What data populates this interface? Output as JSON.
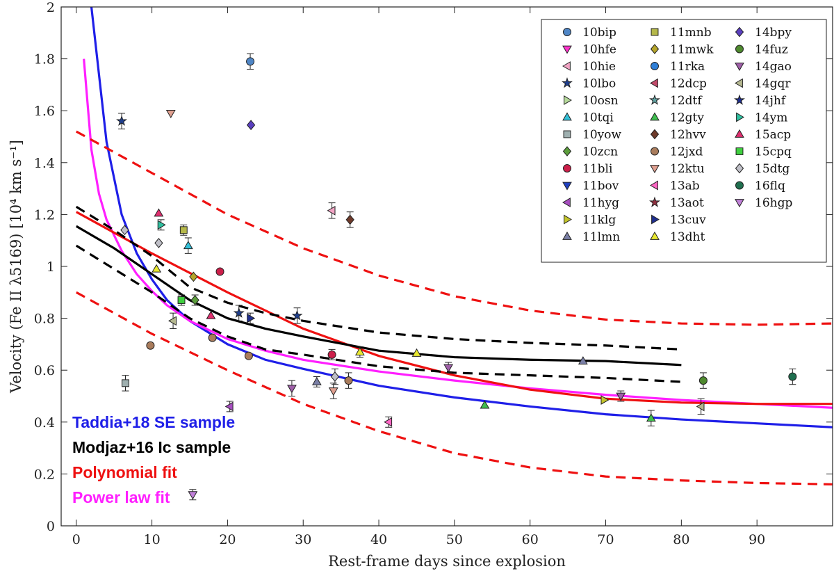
{
  "chart_data": {
    "type": "scatter",
    "title": "",
    "xlabel": "Rest-frame days since explosion",
    "ylabel": "Velocity (Fe II λ5169) [10⁴ km s⁻¹]",
    "xlim": [
      -2,
      100
    ],
    "ylim": [
      0,
      2
    ],
    "xticks": [
      "0",
      "10",
      "20",
      "30",
      "40",
      "50",
      "60",
      "70",
      "80",
      "90"
    ],
    "yticks": [
      "0",
      "0.2",
      "0.4",
      "0.6",
      "0.8",
      "1",
      "1.2",
      "1.4",
      "1.6",
      "1.8",
      "2"
    ],
    "grid": false,
    "legend_position": "top-right",
    "series": [
      {
        "name": "10bip",
        "marker": "circle",
        "color": "#4f86c6",
        "x": [
          23
        ],
        "y": [
          1.79
        ],
        "err": [
          0.03
        ]
      },
      {
        "name": "10hfe",
        "marker": "triangle-down",
        "color": "#ff33cc",
        "x": [],
        "y": []
      },
      {
        "name": "10hie",
        "marker": "triangle-left",
        "color": "#f2a4c4",
        "x": [
          33.8
        ],
        "y": [
          1.215
        ],
        "err": [
          0.03
        ]
      },
      {
        "name": "10lbo",
        "marker": "star",
        "color": "#1f3f8f",
        "x": [
          6,
          21.5,
          29.2
        ],
        "y": [
          1.56,
          0.82,
          0.81
        ],
        "err": [
          0.03,
          0.03,
          0.03
        ]
      },
      {
        "name": "10osn",
        "marker": "triangle-right",
        "color": "#b5d99a",
        "x": [],
        "y": []
      },
      {
        "name": "10tqi",
        "marker": "triangle-up",
        "color": "#33c0d8",
        "x": [
          14.8
        ],
        "y": [
          1.08
        ],
        "err": [
          0.03
        ]
      },
      {
        "name": "10yow",
        "marker": "square",
        "color": "#9fb0b0",
        "x": [
          6.5
        ],
        "y": [
          0.55
        ],
        "err": [
          0.03
        ]
      },
      {
        "name": "10zcn",
        "marker": "diamond",
        "color": "#5c9e3c",
        "x": [
          15.7
        ],
        "y": [
          0.87
        ],
        "err": [
          0.02
        ]
      },
      {
        "name": "11bli",
        "marker": "circle",
        "color": "#cc1f4a",
        "x": [
          19,
          33.8
        ],
        "y": [
          0.98,
          0.66
        ],
        "err": [
          0,
          0.02
        ]
      },
      {
        "name": "11bov",
        "marker": "triangle-down",
        "color": "#1f3fbf",
        "x": [],
        "y": []
      },
      {
        "name": "11hyg",
        "marker": "triangle-left",
        "color": "#a64dbf",
        "x": [
          20.3
        ],
        "y": [
          0.46
        ],
        "err": [
          0.02
        ]
      },
      {
        "name": "11klg",
        "marker": "triangle-right",
        "color": "#c3c42a",
        "x": [
          69.8
        ],
        "y": [
          0.485
        ],
        "err": [
          0
        ]
      },
      {
        "name": "11lmn",
        "marker": "triangle-up",
        "color": "#7a7fa6",
        "x": [
          31.8,
          67
        ],
        "y": [
          0.555,
          0.635
        ],
        "err": [
          0.02,
          0
        ]
      },
      {
        "name": "11mnb",
        "marker": "square",
        "color": "#b5b84a",
        "x": [
          14.2
        ],
        "y": [
          1.14
        ],
        "err": [
          0.02
        ]
      },
      {
        "name": "11mwk",
        "marker": "diamond",
        "color": "#b5a52a",
        "x": [
          15.5
        ],
        "y": [
          0.96
        ],
        "err": [
          0
        ]
      },
      {
        "name": "11rka",
        "marker": "circle",
        "color": "#2f7fd8",
        "x": [],
        "y": []
      },
      {
        "name": "12dcp",
        "marker": "triangle-left",
        "color": "#c24a6a",
        "x": [],
        "y": []
      },
      {
        "name": "12dtf",
        "marker": "star",
        "color": "#5fa0a0",
        "x": [],
        "y": []
      },
      {
        "name": "12gty",
        "marker": "triangle-up",
        "color": "#3fbf4f",
        "x": [
          54,
          76
        ],
        "y": [
          0.465,
          0.415
        ],
        "err": [
          0,
          0.03
        ]
      },
      {
        "name": "12hvv",
        "marker": "diamond",
        "color": "#6e3a2a",
        "x": [
          36.2
        ],
        "y": [
          1.18
        ],
        "err": [
          0.03
        ]
      },
      {
        "name": "12jxd",
        "marker": "circle",
        "color": "#a97c5c",
        "x": [
          9.8,
          18,
          22.8,
          36
        ],
        "y": [
          0.695,
          0.725,
          0.655,
          0.56
        ],
        "err": [
          0,
          0,
          0,
          0.03
        ]
      },
      {
        "name": "12ktu",
        "marker": "triangle-down",
        "color": "#e0a090",
        "x": [
          12.5,
          34
        ],
        "y": [
          1.59,
          0.52
        ],
        "err": [
          0,
          0.03
        ]
      },
      {
        "name": "13ab",
        "marker": "triangle-left",
        "color": "#ff66c4",
        "x": [
          41.3
        ],
        "y": [
          0.4
        ],
        "err": [
          0.02
        ]
      },
      {
        "name": "13aot",
        "marker": "star",
        "color": "#8f2f3f",
        "x": [],
        "y": []
      },
      {
        "name": "13cuv",
        "marker": "triangle-right",
        "color": "#1f2f8f",
        "x": [
          23
        ],
        "y": [
          0.8
        ],
        "err": [
          0.02
        ]
      },
      {
        "name": "13dht",
        "marker": "triangle-up",
        "color": "#e8e830",
        "x": [
          10.6,
          37.5,
          45
        ],
        "y": [
          0.99,
          0.67,
          0.665
        ],
        "err": [
          0,
          0.02,
          0
        ]
      },
      {
        "name": "14bpy",
        "marker": "diamond",
        "color": "#5a3fbf",
        "x": [
          23.1
        ],
        "y": [
          1.545
        ],
        "err": [
          0
        ]
      },
      {
        "name": "14fuz",
        "marker": "circle",
        "color": "#4f8a2f",
        "x": [
          82.9
        ],
        "y": [
          0.56
        ],
        "err": [
          0.03
        ]
      },
      {
        "name": "14gao",
        "marker": "triangle-down",
        "color": "#9f5fa8",
        "x": [
          28.5,
          49.2,
          72
        ],
        "y": [
          0.53,
          0.61,
          0.5
        ],
        "err": [
          0.03,
          0.02,
          0.02
        ]
      },
      {
        "name": "14gqr",
        "marker": "triangle-left",
        "color": "#b5b890",
        "x": [
          12.8,
          82.6
        ],
        "y": [
          0.79,
          0.46
        ],
        "err": [
          0.03,
          0.03
        ]
      },
      {
        "name": "14jhf",
        "marker": "star",
        "color": "#1f2f8f",
        "x": [],
        "y": []
      },
      {
        "name": "14ym",
        "marker": "triangle-right",
        "color": "#2fc0a0",
        "x": [
          11.2
        ],
        "y": [
          1.16
        ],
        "err": [
          0.02
        ]
      },
      {
        "name": "15acp",
        "marker": "triangle-up",
        "color": "#e02f6f",
        "x": [
          10.9,
          17.8
        ],
        "y": [
          1.205,
          0.81
        ],
        "err": [
          0,
          0
        ]
      },
      {
        "name": "15cpq",
        "marker": "square",
        "color": "#3fcf3f",
        "x": [
          13.9
        ],
        "y": [
          0.87
        ],
        "err": [
          0.02
        ]
      },
      {
        "name": "15dtg",
        "marker": "diamond",
        "color": "#c0c0c8",
        "x": [
          6.4,
          10.9,
          34.2
        ],
        "y": [
          1.14,
          1.09,
          0.575
        ],
        "err": [
          0,
          0,
          0.03
        ]
      },
      {
        "name": "16flq",
        "marker": "circle",
        "color": "#1f6f4f",
        "x": [
          94.7
        ],
        "y": [
          0.575
        ],
        "err": [
          0.03
        ]
      },
      {
        "name": "16hgp",
        "marker": "triangle-down",
        "color": "#c080d8",
        "x": [
          15.4
        ],
        "y": [
          0.12
        ],
        "err": [
          0.02
        ]
      }
    ],
    "curves": [
      {
        "name": "Taddia+18 SE sample",
        "color": "#1f1fe8",
        "style": "solid",
        "x": [
          2,
          4,
          6,
          8,
          10,
          12,
          15,
          20,
          25,
          30,
          40,
          50,
          60,
          70,
          80,
          90,
          100
        ],
        "y": [
          2.0,
          1.48,
          1.2,
          1.05,
          0.95,
          0.87,
          0.79,
          0.7,
          0.64,
          0.605,
          0.54,
          0.495,
          0.46,
          0.43,
          0.41,
          0.395,
          0.38
        ]
      },
      {
        "name": "Power law fit",
        "color": "#ff1fff",
        "style": "solid",
        "x": [
          1,
          2,
          3,
          4,
          6,
          8,
          10,
          12,
          15,
          20,
          25,
          30,
          40,
          50,
          60,
          70,
          80,
          90,
          100
        ],
        "y": [
          1.8,
          1.45,
          1.28,
          1.18,
          1.06,
          0.97,
          0.905,
          0.85,
          0.79,
          0.72,
          0.675,
          0.64,
          0.595,
          0.56,
          0.53,
          0.505,
          0.485,
          0.47,
          0.455
        ]
      },
      {
        "name": "Polynomial fit",
        "color": "#ee1111",
        "style": "solid",
        "x": [
          0,
          10,
          20,
          30,
          40,
          50,
          60,
          70,
          80,
          90,
          100
        ],
        "y": [
          1.21,
          1.05,
          0.9,
          0.76,
          0.655,
          0.58,
          0.525,
          0.49,
          0.475,
          0.47,
          0.47
        ]
      },
      {
        "name": "Polynomial fit upper bound",
        "color": "#ee1111",
        "style": "dashed",
        "x": [
          0,
          10,
          20,
          30,
          40,
          50,
          60,
          70,
          80,
          90,
          100
        ],
        "y": [
          1.52,
          1.36,
          1.2,
          1.07,
          0.965,
          0.885,
          0.83,
          0.795,
          0.78,
          0.775,
          0.78
        ]
      },
      {
        "name": "Polynomial fit lower bound",
        "color": "#ee1111",
        "style": "dashed",
        "x": [
          0,
          10,
          20,
          30,
          40,
          50,
          60,
          70,
          80,
          90,
          100
        ],
        "y": [
          0.9,
          0.74,
          0.6,
          0.47,
          0.365,
          0.28,
          0.225,
          0.19,
          0.175,
          0.165,
          0.16
        ]
      },
      {
        "name": "Modjaz+16 Ic sample",
        "color": "#000000",
        "style": "solid",
        "x": [
          0,
          5,
          10,
          15,
          20,
          25,
          30,
          40,
          50,
          60,
          70,
          80
        ],
        "y": [
          1.155,
          1.07,
          0.97,
          0.87,
          0.8,
          0.76,
          0.73,
          0.675,
          0.65,
          0.64,
          0.635,
          0.62
        ]
      },
      {
        "name": "Modjaz+16 Ic sample upper bound",
        "color": "#000000",
        "style": "dashed",
        "x": [
          0,
          5,
          10,
          15,
          20,
          25,
          30,
          40,
          50,
          60,
          70,
          80
        ],
        "y": [
          1.23,
          1.14,
          1.04,
          0.92,
          0.86,
          0.82,
          0.79,
          0.745,
          0.72,
          0.705,
          0.695,
          0.68
        ]
      },
      {
        "name": "Modjaz+16 Ic sample lower bound",
        "color": "#000000",
        "style": "dashed",
        "x": [
          0,
          5,
          10,
          15,
          20,
          25,
          30,
          40,
          50,
          60,
          70,
          80
        ],
        "y": [
          1.08,
          0.99,
          0.9,
          0.8,
          0.73,
          0.68,
          0.66,
          0.615,
          0.59,
          0.58,
          0.57,
          0.555
        ]
      }
    ],
    "annotations": [
      {
        "text": "Taddia+18 SE sample",
        "color": "#1f1fe8"
      },
      {
        "text": "Modjaz+16 Ic sample",
        "color": "#000000"
      },
      {
        "text": "Polynomial fit",
        "color": "#ee1111"
      },
      {
        "text": "Power law fit",
        "color": "#ff1fff"
      }
    ]
  }
}
